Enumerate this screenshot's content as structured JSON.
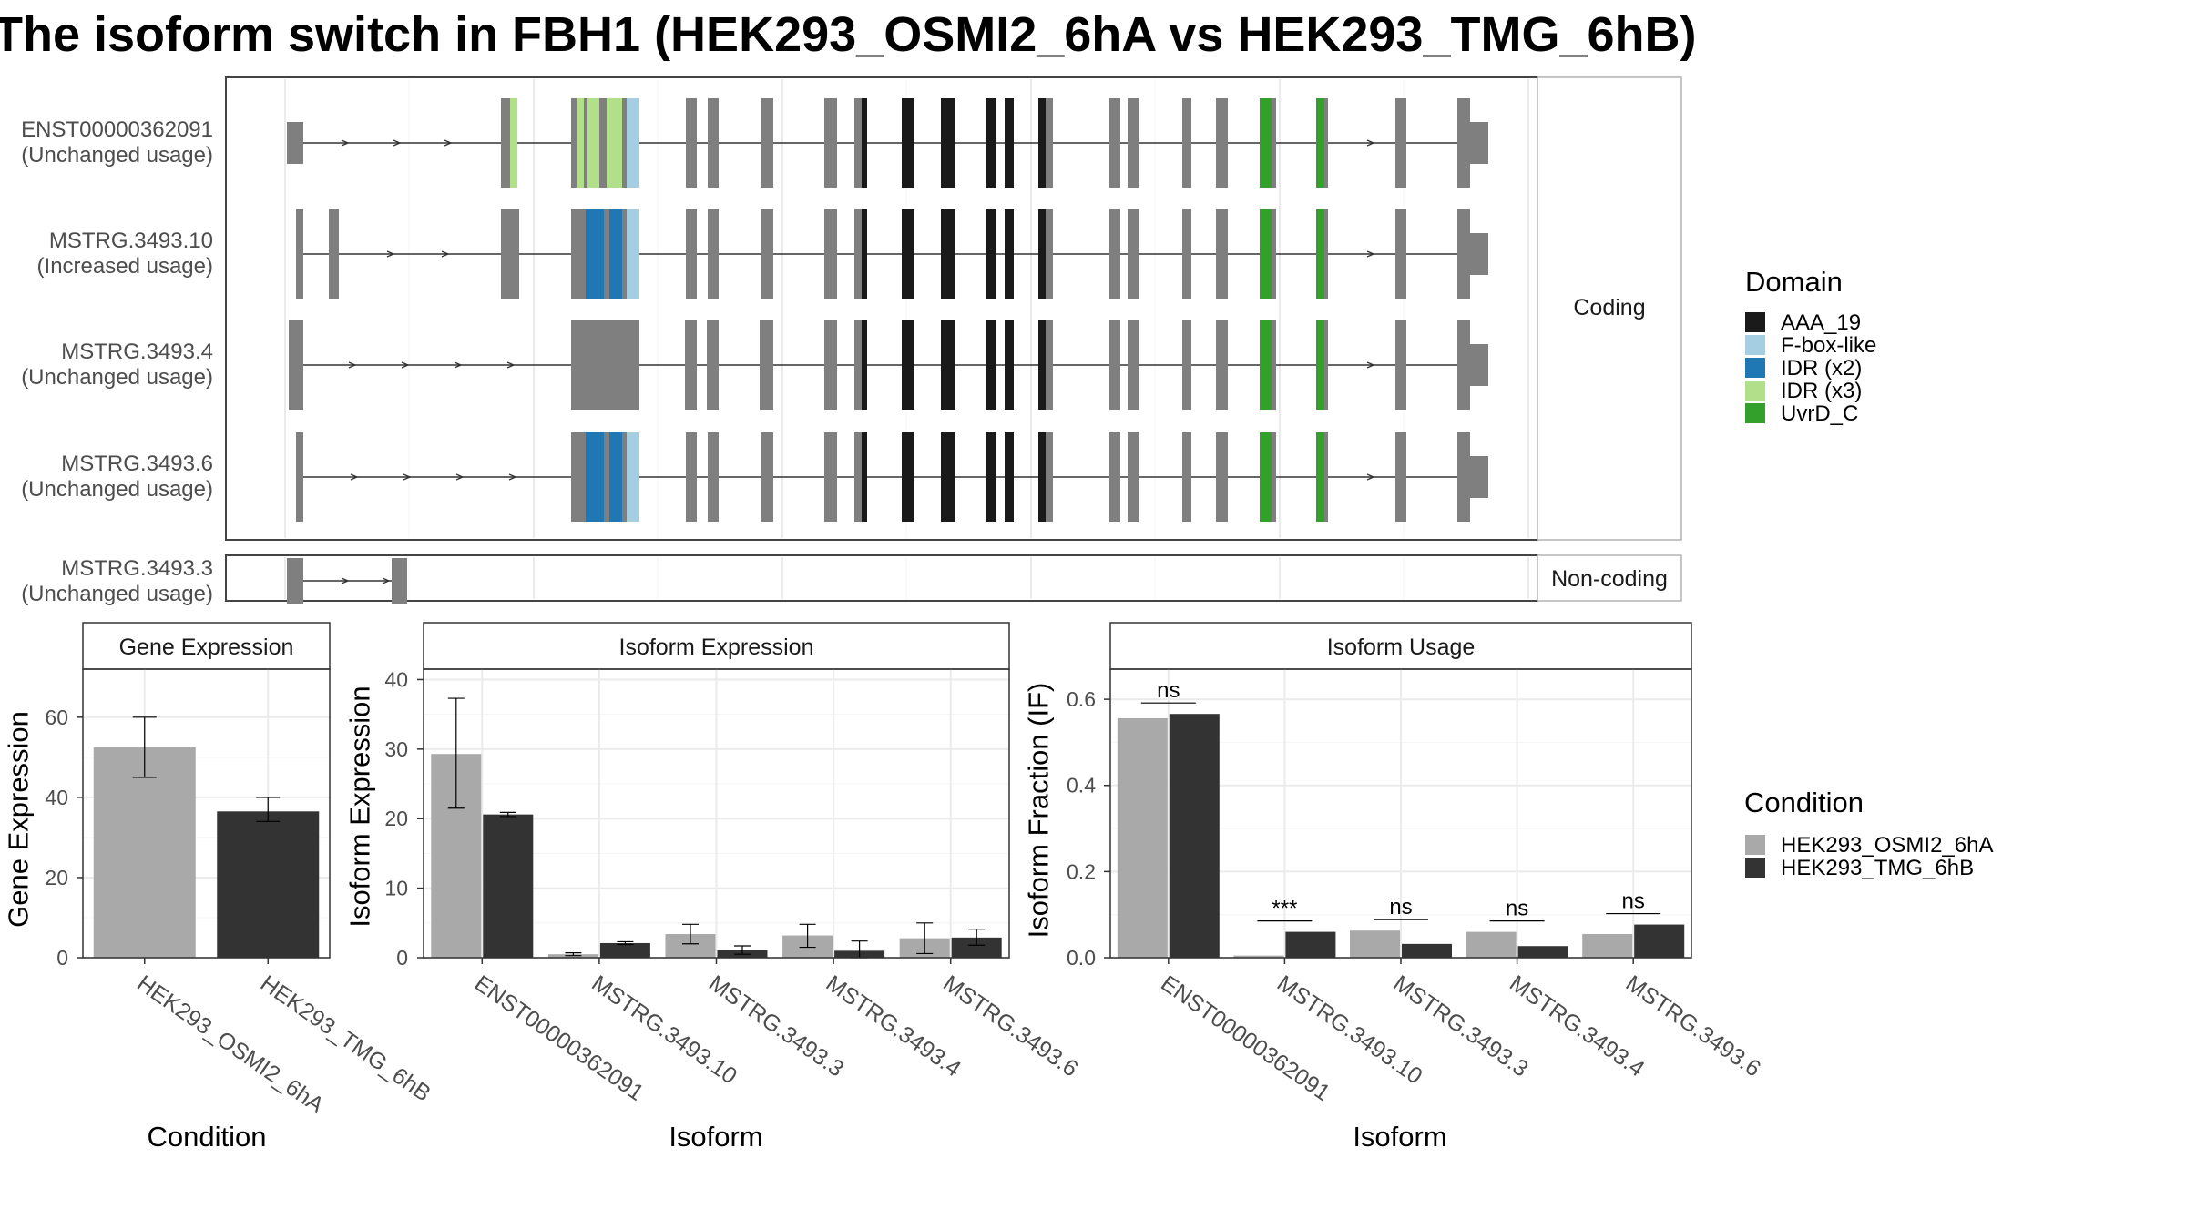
{
  "title": "The isoform switch in FBH1 (HEK293_OSMI2_6hA vs HEK293_TMG_6hB)",
  "colors": {
    "AAA_19": "#1a1a1a",
    "F-box-like": "#a6cee3",
    "IDR (x2)": "#1f78b4",
    "IDR (x3)": "#b2df8a",
    "UvrD_C": "#33a02c",
    "exon": "#7f7f7f",
    "cond_a": "#a9a9a9",
    "cond_b": "#333333"
  },
  "domain_legend": {
    "title": "Domain",
    "items": [
      {
        "label": "AAA_19",
        "color": "#1a1a1a"
      },
      {
        "label": "F-box-like",
        "color": "#a6cee3"
      },
      {
        "label": "IDR (x2)",
        "color": "#1f78b4"
      },
      {
        "label": "IDR (x3)",
        "color": "#b2df8a"
      },
      {
        "label": "UvrD_C",
        "color": "#33a02c"
      }
    ]
  },
  "condition_legend": {
    "title": "Condition",
    "items": [
      {
        "label": "HEK293_OSMI2_6hA",
        "color": "#a9a9a9"
      },
      {
        "label": "HEK293_TMG_6hB",
        "color": "#333333"
      }
    ]
  },
  "transcripts": {
    "coding_label": "Coding",
    "noncoding_label": "Non-coding",
    "rows": [
      {
        "id": "ENST00000362091",
        "usage": "(Unchanged usage)",
        "group": "coding"
      },
      {
        "id": "MSTRG.3493.10",
        "usage": "(Increased usage)",
        "group": "coding"
      },
      {
        "id": "MSTRG.3493.4",
        "usage": "(Unchanged usage)",
        "group": "coding"
      },
      {
        "id": "MSTRG.3493.6",
        "usage": "(Unchanged usage)",
        "group": "coding"
      },
      {
        "id": "MSTRG.3493.3",
        "usage": "(Unchanged usage)",
        "group": "noncoding"
      }
    ]
  },
  "chart_data": [
    {
      "type": "bar",
      "title": "Gene Expression",
      "xlabel": "Condition",
      "ylabel": "Gene Expression",
      "ylim": [
        0,
        72
      ],
      "yticks": [
        0,
        20,
        40,
        60
      ],
      "categories": [
        "HEK293_OSMI2_6hA",
        "HEK293_TMG_6hB"
      ],
      "values": [
        52.5,
        36.5
      ],
      "errors": [
        [
          45,
          60
        ],
        [
          34,
          40
        ]
      ]
    },
    {
      "type": "bar",
      "title": "Isoform Expression",
      "xlabel": "Isoform",
      "ylabel": "Isoform Expression",
      "ylim": [
        0,
        41.5
      ],
      "yticks": [
        0,
        10,
        20,
        30,
        40
      ],
      "categories": [
        "ENST00000362091",
        "MSTRG.3493.10",
        "MSTRG.3493.3",
        "MSTRG.3493.4",
        "MSTRG.3493.6"
      ],
      "series": [
        {
          "name": "HEK293_OSMI2_6hA",
          "values": [
            29.3,
            0.5,
            3.4,
            3.2,
            2.8
          ],
          "errors": [
            [
              21.5,
              37.3
            ],
            [
              0.3,
              0.7
            ],
            [
              2.0,
              4.8
            ],
            [
              1.5,
              4.8
            ],
            [
              0.6,
              5.0
            ]
          ]
        },
        {
          "name": "HEK293_TMG_6hB",
          "values": [
            20.6,
            2.1,
            1.1,
            1.0,
            2.9
          ],
          "errors": [
            [
              20.3,
              20.9
            ],
            [
              1.9,
              2.3
            ],
            [
              0.5,
              1.7
            ],
            [
              0.0,
              2.4
            ],
            [
              1.8,
              4.1
            ]
          ]
        }
      ]
    },
    {
      "type": "bar",
      "title": "Isoform Usage",
      "xlabel": "Isoform",
      "ylabel": "Isoform Fraction (IF)",
      "ylim": [
        0,
        0.67
      ],
      "yticks": [
        0.0,
        0.2,
        0.4,
        0.6
      ],
      "tick_labels": [
        "0.0",
        "0.2",
        "0.4",
        "0.6"
      ],
      "categories": [
        "ENST00000362091",
        "MSTRG.3493.10",
        "MSTRG.3493.3",
        "MSTRG.3493.4",
        "MSTRG.3493.6"
      ],
      "series": [
        {
          "name": "HEK293_OSMI2_6hA",
          "values": [
            0.556,
            0.005,
            0.063,
            0.06,
            0.055
          ]
        },
        {
          "name": "HEK293_TMG_6hB",
          "values": [
            0.566,
            0.06,
            0.032,
            0.027,
            0.077
          ]
        }
      ],
      "significance": [
        "ns",
        "***",
        "ns",
        "ns",
        "ns"
      ]
    }
  ]
}
